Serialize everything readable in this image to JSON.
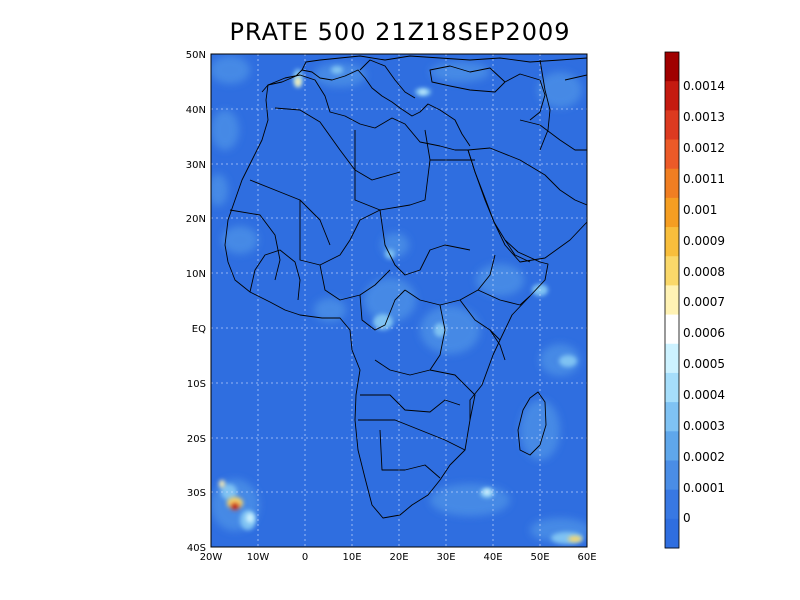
{
  "title": "PRATE 500 21Z18SEP2009",
  "map": {
    "lon_range": [
      -20,
      60
    ],
    "lat_range": [
      -40,
      50
    ],
    "grid": true,
    "background_color": "#2f6ee0",
    "lat_ticks": [
      "50N",
      "40N",
      "30N",
      "20N",
      "10N",
      "EQ",
      "10S",
      "20S",
      "30S",
      "40S"
    ],
    "lon_ticks": [
      "20W",
      "10W",
      "0",
      "10E",
      "20E",
      "30E",
      "40E",
      "50E",
      "60E"
    ]
  },
  "colorbar": {
    "labels": [
      "0.0014",
      "0.0013",
      "0.0012",
      "0.0011",
      "0.001",
      "0.0009",
      "0.0008",
      "0.0007",
      "0.0006",
      "0.0005",
      "0.0004",
      "0.0003",
      "0.0002",
      "0.0001",
      "0"
    ],
    "colors": [
      "#a00000",
      "#c41a10",
      "#dc3a20",
      "#ec5a28",
      "#f07e22",
      "#f59e22",
      "#f8be3c",
      "#fad86a",
      "#fff2b4",
      "#ffffff",
      "#cdf2ff",
      "#a6defb",
      "#7fc2f3",
      "#5fa7eb",
      "#4a8de6",
      "#3878e3",
      "#2f6ee0"
    ]
  }
}
